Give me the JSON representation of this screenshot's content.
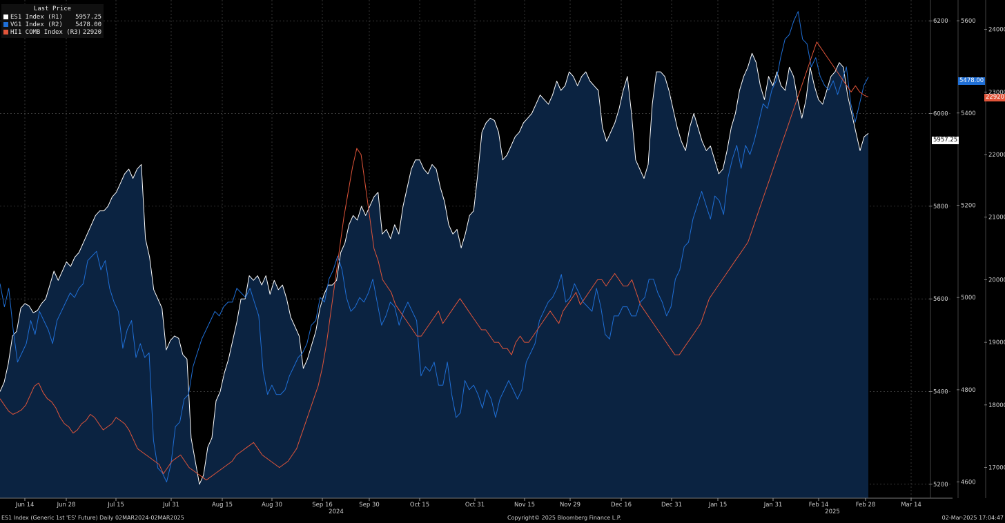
{
  "legend": {
    "title": "Last Price",
    "items": [
      {
        "name": "ES1 Index  (R1)",
        "value": "5957.25",
        "color": "#ffffff"
      },
      {
        "name": "VG1 Index  (R2)",
        "value": "5478.00",
        "color": "#1f6fd6"
      },
      {
        "name": "HI1 COMB Index  (R3)",
        "value": "22920",
        "color": "#e2553a"
      }
    ]
  },
  "footer": {
    "left": "ES1 Index (Generic 1st 'ES' Future)  Daily 02MAR2024-02MAR2025",
    "center": "Copyright© 2025 Bloomberg Finance L.P.",
    "right": "02-Mar-2025 17:04:47"
  },
  "price_tags": {
    "es1": "5957.25",
    "vg1": "5478.00",
    "hi1": "22920"
  },
  "chart_data": {
    "type": "line",
    "x_ticks": [
      "Jun 14",
      "Jun 28",
      "Jul 15",
      "Jul 31",
      "Aug 15",
      "Aug 30",
      "Sep 16",
      "Sep 30",
      "Oct 15",
      "Oct 31",
      "Nov 15",
      "Nov 29",
      "Dec 16",
      "Dec 31",
      "Jan 15",
      "Jan 31",
      "Feb 14",
      "Feb 28",
      "Mar 14"
    ],
    "year_labels": [
      {
        "label": "2024",
        "under": "Sep 16"
      },
      {
        "label": "2025",
        "under": "Feb 14"
      }
    ],
    "axes": {
      "R1": {
        "ticks": [
          5200,
          5400,
          5600,
          5800,
          6000,
          6200
        ],
        "range": [
          5170,
          6245
        ]
      },
      "R2": {
        "ticks": [
          4600,
          4800,
          5000,
          5200,
          5400,
          5600
        ],
        "range": [
          4565,
          5645
        ]
      },
      "R3": {
        "ticks": [
          17000,
          18000,
          19000,
          20000,
          21000,
          22000,
          23000,
          24000
        ],
        "range": [
          16510,
          24470
        ]
      }
    },
    "grid": true,
    "legend_position": "top-left",
    "series": [
      {
        "name": "ES1 Index",
        "axis": "R1",
        "color": "#ffffff",
        "fill": "#0b2341",
        "last": 5957.25,
        "x_start": "Jun 1",
        "x_end": "Feb 28",
        "values": [
          5400,
          5420,
          5460,
          5520,
          5530,
          5580,
          5590,
          5585,
          5570,
          5575,
          5590,
          5600,
          5630,
          5660,
          5640,
          5660,
          5680,
          5670,
          5690,
          5700,
          5720,
          5740,
          5760,
          5780,
          5790,
          5790,
          5800,
          5820,
          5830,
          5850,
          5870,
          5880,
          5860,
          5880,
          5890,
          5730,
          5690,
          5620,
          5600,
          5580,
          5490,
          5510,
          5520,
          5515,
          5480,
          5470,
          5300,
          5250,
          5200,
          5220,
          5280,
          5300,
          5380,
          5400,
          5440,
          5470,
          5510,
          5550,
          5600,
          5600,
          5650,
          5640,
          5650,
          5630,
          5650,
          5610,
          5640,
          5620,
          5630,
          5600,
          5560,
          5540,
          5520,
          5450,
          5470,
          5500,
          5530,
          5580,
          5610,
          5630,
          5630,
          5640,
          5700,
          5720,
          5760,
          5780,
          5770,
          5800,
          5780,
          5800,
          5820,
          5830,
          5740,
          5750,
          5730,
          5760,
          5740,
          5800,
          5840,
          5880,
          5900,
          5900,
          5880,
          5870,
          5890,
          5880,
          5840,
          5810,
          5760,
          5740,
          5750,
          5710,
          5740,
          5780,
          5790,
          5870,
          5960,
          5980,
          5990,
          5985,
          5960,
          5900,
          5910,
          5930,
          5950,
          5960,
          5980,
          5990,
          6000,
          6020,
          6040,
          6030,
          6020,
          6040,
          6070,
          6050,
          6060,
          6090,
          6080,
          6060,
          6080,
          6090,
          6070,
          6060,
          6050,
          5970,
          5940,
          5960,
          5980,
          6010,
          6050,
          6080,
          6000,
          5900,
          5880,
          5860,
          5890,
          6020,
          6090,
          6090,
          6080,
          6050,
          6010,
          5970,
          5940,
          5920,
          5970,
          6000,
          5970,
          5940,
          5920,
          5930,
          5900,
          5870,
          5880,
          5920,
          5970,
          6000,
          6050,
          6080,
          6100,
          6130,
          6110,
          6060,
          6030,
          6080,
          6060,
          6090,
          6060,
          6050,
          6100,
          6080,
          6030,
          5990,
          6030,
          6100,
          6060,
          6030,
          6020,
          6050,
          6080,
          6090,
          6110,
          6100,
          6040,
          6000,
          5960,
          5920,
          5950,
          5957.25
        ]
      },
      {
        "name": "VG1 Index",
        "axis": "R2",
        "color": "#1f6fd6",
        "last": 5478.0,
        "x_start": "Jun 1",
        "x_end": "Feb 28",
        "values": [
          5030,
          4980,
          5020,
          4930,
          4860,
          4880,
          4900,
          4950,
          4920,
          4970,
          4950,
          4930,
          4900,
          4950,
          4970,
          4990,
          5010,
          5000,
          5020,
          5030,
          5080,
          5090,
          5100,
          5060,
          5080,
          5020,
          4990,
          4970,
          4890,
          4930,
          4950,
          4870,
          4900,
          4870,
          4880,
          4690,
          4630,
          4620,
          4600,
          4640,
          4720,
          4730,
          4780,
          4790,
          4850,
          4880,
          4910,
          4930,
          4950,
          4970,
          4960,
          4980,
          4990,
          4990,
          5020,
          5010,
          5000,
          5020,
          4990,
          4960,
          4840,
          4790,
          4810,
          4790,
          4790,
          4800,
          4830,
          4850,
          4870,
          4880,
          4900,
          4940,
          4950,
          5000,
          4990,
          5040,
          5060,
          5090,
          5060,
          5000,
          4970,
          4980,
          5000,
          4990,
          5010,
          5040,
          4990,
          4940,
          4960,
          4990,
          4980,
          4940,
          4970,
          4990,
          4970,
          4950,
          4830,
          4850,
          4840,
          4860,
          4810,
          4810,
          4860,
          4790,
          4740,
          4750,
          4820,
          4800,
          4810,
          4790,
          4760,
          4800,
          4780,
          4740,
          4780,
          4800,
          4820,
          4800,
          4780,
          4800,
          4860,
          4880,
          4900,
          4950,
          4970,
          4990,
          5000,
          5020,
          5050,
          4990,
          5000,
          5030,
          5010,
          4990,
          4980,
          4970,
          5020,
          4980,
          4920,
          4910,
          4960,
          4960,
          4980,
          4980,
          4960,
          4960,
          4990,
          5000,
          5040,
          5040,
          5010,
          4990,
          4960,
          4980,
          5040,
          5060,
          5110,
          5120,
          5170,
          5200,
          5230,
          5200,
          5170,
          5220,
          5210,
          5180,
          5260,
          5300,
          5330,
          5280,
          5330,
          5310,
          5340,
          5380,
          5420,
          5410,
          5450,
          5470,
          5520,
          5560,
          5570,
          5600,
          5620,
          5560,
          5550,
          5500,
          5520,
          5480,
          5460,
          5450,
          5470,
          5440,
          5470,
          5500,
          5420,
          5380,
          5420,
          5460,
          5478
        ]
      },
      {
        "name": "HI1 COMB Index",
        "axis": "R3",
        "color": "#e2553a",
        "last": 22920,
        "x_start": "Jun 1",
        "x_end": "Feb 28",
        "values": [
          18100,
          18000,
          17900,
          17850,
          17880,
          17920,
          18000,
          18150,
          18300,
          18350,
          18200,
          18100,
          18050,
          17950,
          17800,
          17700,
          17650,
          17550,
          17600,
          17700,
          17750,
          17850,
          17800,
          17700,
          17600,
          17650,
          17700,
          17800,
          17750,
          17700,
          17600,
          17450,
          17300,
          17250,
          17200,
          17150,
          17100,
          17050,
          16900,
          17000,
          17100,
          17150,
          17200,
          17100,
          17000,
          16950,
          16900,
          16850,
          16800,
          16850,
          16900,
          16950,
          17000,
          17050,
          17100,
          17200,
          17250,
          17300,
          17350,
          17400,
          17300,
          17200,
          17150,
          17100,
          17050,
          17000,
          17050,
          17100,
          17200,
          17300,
          17500,
          17700,
          17900,
          18100,
          18300,
          18600,
          19000,
          19500,
          20000,
          20500,
          21000,
          21400,
          21800,
          22100,
          22000,
          21500,
          21000,
          20500,
          20300,
          20000,
          19900,
          19800,
          19600,
          19500,
          19400,
          19300,
          19200,
          19100,
          19100,
          19200,
          19300,
          19400,
          19500,
          19300,
          19400,
          19500,
          19600,
          19700,
          19600,
          19500,
          19400,
          19300,
          19200,
          19200,
          19100,
          19000,
          19000,
          18900,
          18900,
          18800,
          19000,
          19100,
          19000,
          19000,
          19100,
          19200,
          19300,
          19400,
          19500,
          19400,
          19300,
          19500,
          19600,
          19700,
          19800,
          19600,
          19700,
          19800,
          19900,
          20000,
          20000,
          19900,
          20000,
          20100,
          20000,
          19900,
          19900,
          20000,
          19800,
          19600,
          19500,
          19400,
          19300,
          19200,
          19100,
          19000,
          18900,
          18800,
          18800,
          18900,
          19000,
          19100,
          19200,
          19300,
          19500,
          19700,
          19800,
          19900,
          20000,
          20100,
          20200,
          20300,
          20400,
          20500,
          20600,
          20800,
          21000,
          21200,
          21400,
          21600,
          21800,
          22000,
          22200,
          22400,
          22600,
          22800,
          23000,
          23200,
          23400,
          23600,
          23800,
          23700,
          23600,
          23500,
          23400,
          23300,
          23200,
          23100,
          23000,
          23100,
          23000,
          22950,
          22920
        ]
      }
    ]
  }
}
